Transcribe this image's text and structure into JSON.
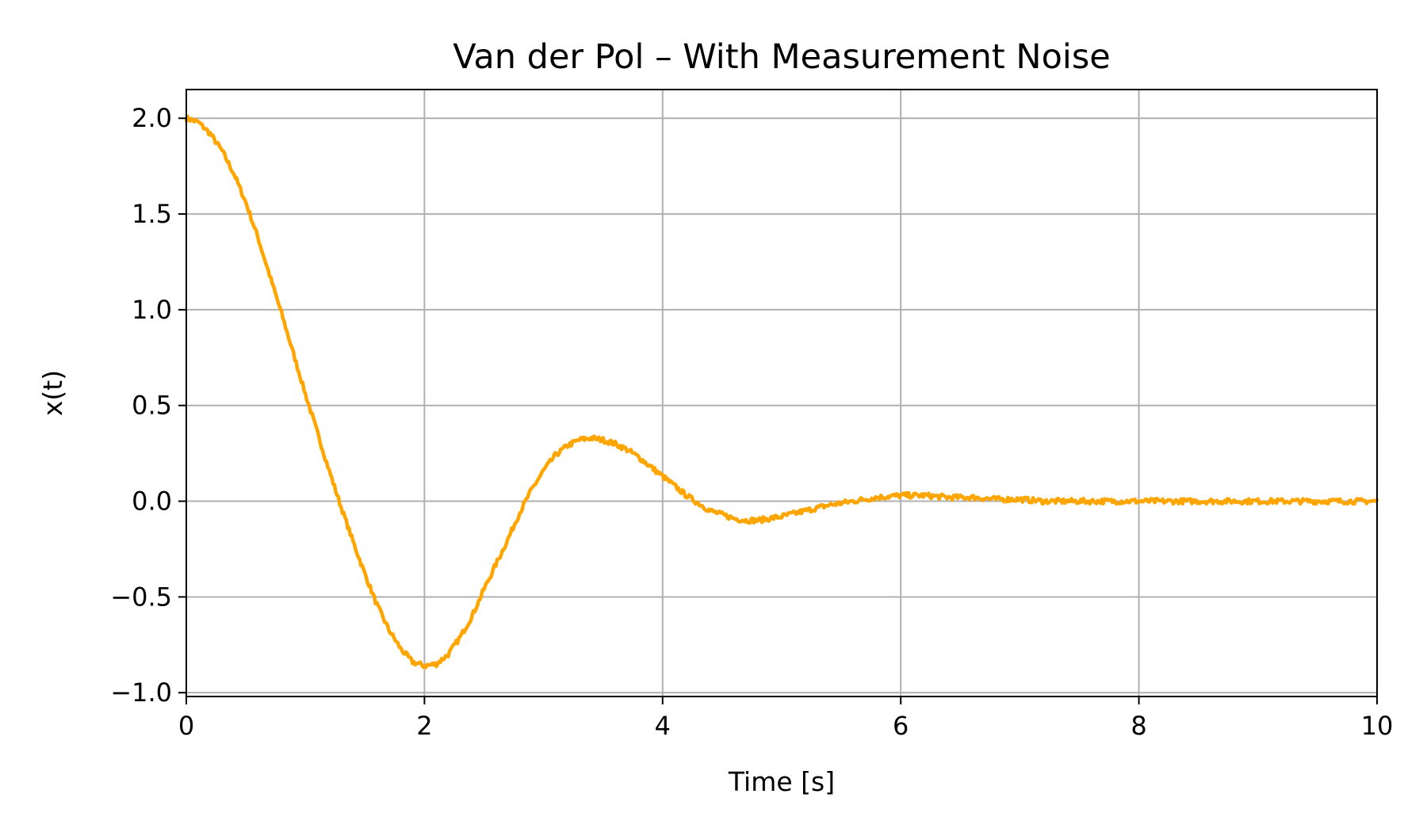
{
  "chart_data": {
    "type": "line",
    "title": "Van der Pol – With Measurement Noise",
    "xlabel": "Time [s]",
    "ylabel": "x(t)",
    "xlim": [
      0,
      10
    ],
    "ylim": [
      -1.02,
      2.15
    ],
    "xticks": [
      0,
      2,
      4,
      6,
      8,
      10
    ],
    "xtick_labels": [
      "0",
      "2",
      "4",
      "6",
      "8",
      "10"
    ],
    "yticks": [
      -1.0,
      -0.5,
      0.0,
      0.5,
      1.0,
      1.5,
      2.0
    ],
    "ytick_labels": [
      "−1.0",
      "−0.5",
      "0.0",
      "0.5",
      "1.0",
      "1.5",
      "2.0"
    ],
    "grid": true,
    "line_color": "#FFA500",
    "grid_color": "#b0b0b0",
    "series": [
      {
        "x": [
          0,
          0.1,
          0.2,
          0.3,
          0.4,
          0.5,
          0.6,
          0.7,
          0.8,
          0.9,
          1.0,
          1.1,
          1.2,
          1.3,
          1.4,
          1.5,
          1.6,
          1.7,
          1.8,
          1.9,
          2.0,
          2.1,
          2.2,
          2.3,
          2.4,
          2.5,
          2.6,
          2.7,
          2.8,
          2.9,
          3.0,
          3.1,
          3.2,
          3.3,
          3.4,
          3.5,
          3.6,
          3.7,
          3.8,
          3.9,
          4.0,
          4.1,
          4.2,
          4.3,
          4.4,
          4.5,
          4.6,
          4.7,
          4.8,
          4.9,
          5.0,
          5.2,
          5.4,
          5.6,
          5.8,
          6.0,
          6.2,
          6.4,
          6.6,
          6.8,
          7.0,
          7.2,
          7.4,
          7.6,
          7.8,
          8.0,
          8.2,
          8.4,
          8.6,
          8.8,
          9.0,
          9.2,
          9.4,
          9.6,
          9.8,
          10.0
        ],
        "values": [
          2.0,
          1.98,
          1.92,
          1.83,
          1.71,
          1.56,
          1.38,
          1.18,
          0.98,
          0.77,
          0.56,
          0.36,
          0.16,
          -0.03,
          -0.21,
          -0.38,
          -0.54,
          -0.67,
          -0.77,
          -0.84,
          -0.86,
          -0.85,
          -0.8,
          -0.71,
          -0.6,
          -0.46,
          -0.33,
          -0.2,
          -0.06,
          0.06,
          0.16,
          0.24,
          0.29,
          0.32,
          0.33,
          0.32,
          0.3,
          0.27,
          0.23,
          0.18,
          0.13,
          0.08,
          0.03,
          -0.01,
          -0.05,
          -0.07,
          -0.09,
          -0.1,
          -0.1,
          -0.09,
          -0.08,
          -0.05,
          -0.02,
          0.0,
          0.02,
          0.03,
          0.03,
          0.02,
          0.02,
          0.01,
          0.01,
          0.0,
          0.0,
          0.0,
          0.0,
          0.0,
          0.0,
          0.0,
          0.0,
          0.0,
          0.0,
          0.0,
          0.0,
          0.0,
          0.0,
          0.0
        ]
      }
    ]
  }
}
